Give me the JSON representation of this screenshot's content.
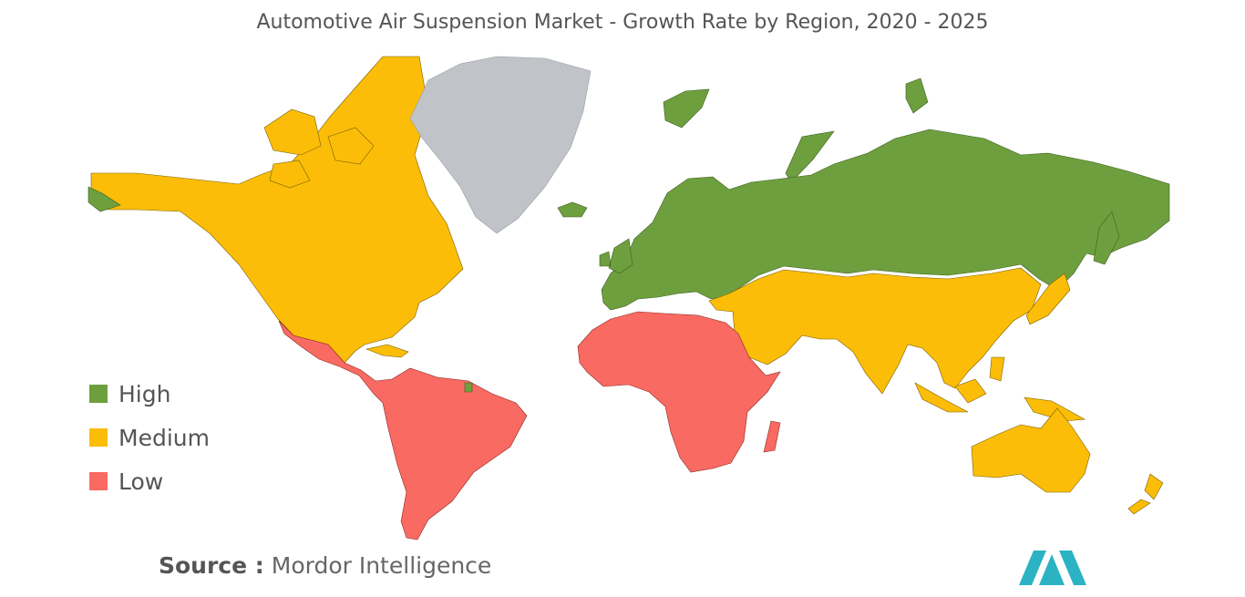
{
  "title": "Automotive Air Suspension Market - Growth Rate by Region, 2020 - 2025",
  "colors": {
    "high": "#6e9f3e",
    "medium": "#fbbd08",
    "low": "#f96a62",
    "no_data": "#c0c3c8",
    "logo": "#2bb3c4"
  },
  "legend": [
    {
      "key": "high",
      "label": "High"
    },
    {
      "key": "medium",
      "label": "Medium"
    },
    {
      "key": "low",
      "label": "Low"
    }
  ],
  "regions": [
    {
      "region": "North America",
      "level": "medium"
    },
    {
      "region": "Europe",
      "level": "high"
    },
    {
      "region": "Russia",
      "level": "high"
    },
    {
      "region": "Asia-Pacific",
      "level": "medium"
    },
    {
      "region": "Middle East",
      "level": "medium"
    },
    {
      "region": "Australia and New Zealand",
      "level": "medium"
    },
    {
      "region": "Latin America",
      "level": "low"
    },
    {
      "region": "Africa",
      "level": "low"
    },
    {
      "region": "Greenland",
      "level": "no_data"
    }
  ],
  "source": {
    "label": "Source :",
    "text": "Mordor Intelligence"
  },
  "logo_icon": "mordor-intelligence-logo-icon"
}
